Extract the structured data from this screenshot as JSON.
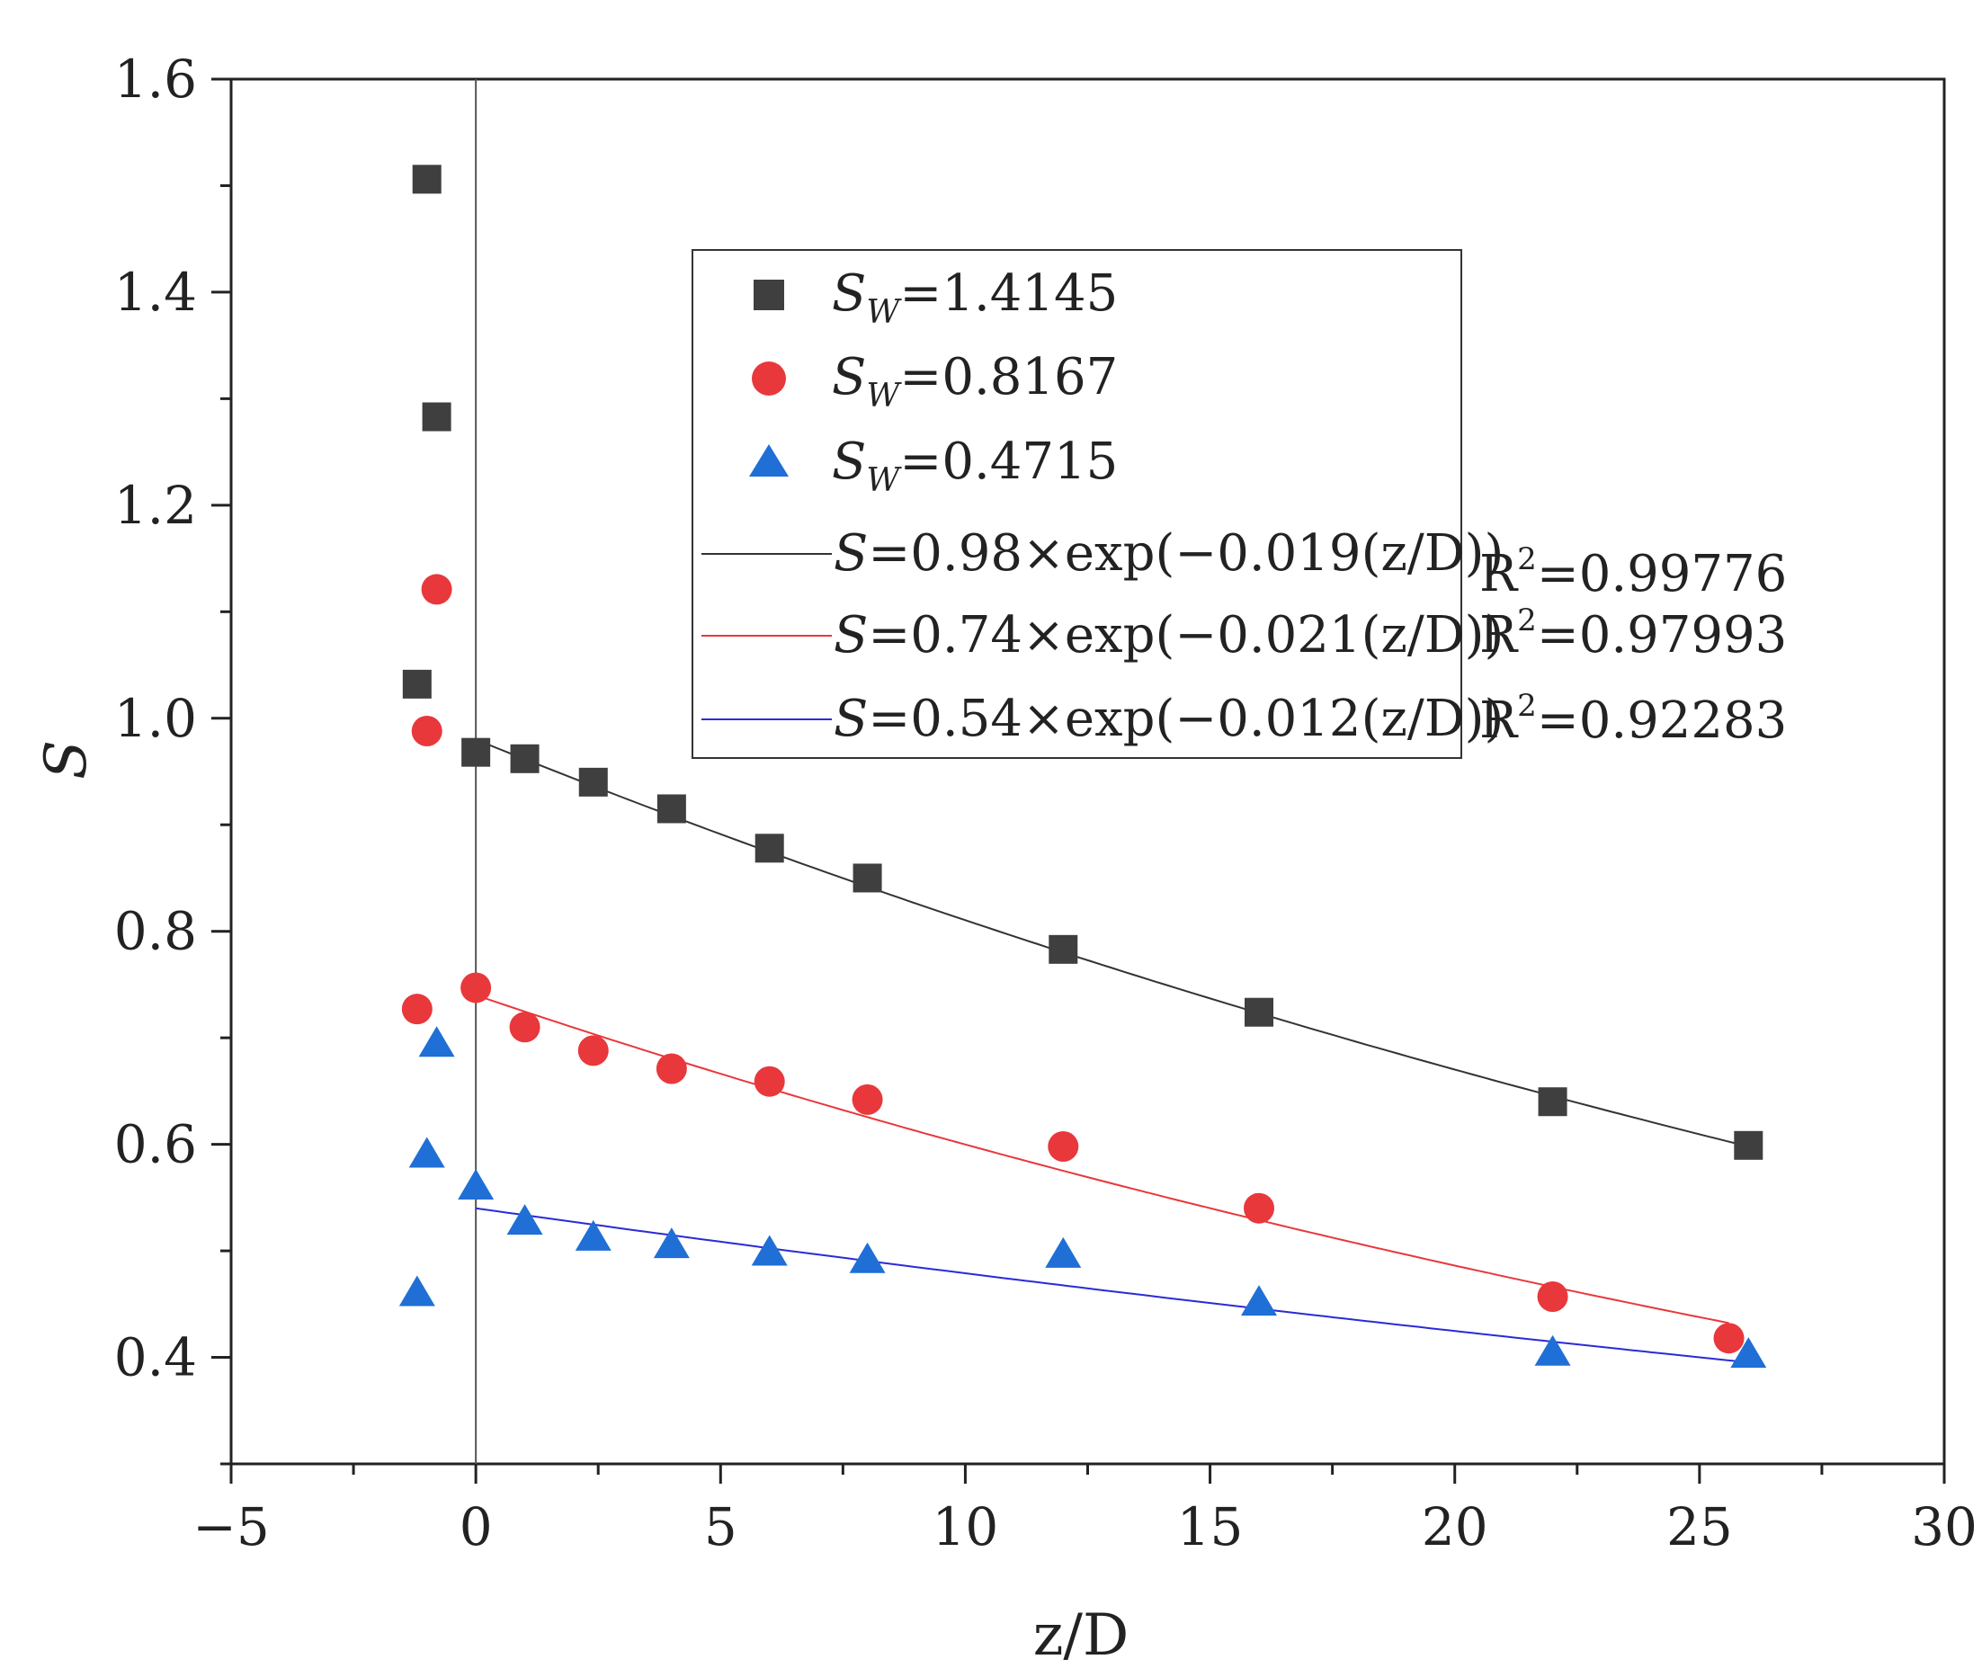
{
  "chart_data": {
    "type": "scatter",
    "title": "",
    "xlabel": "z/D",
    "ylabel": "S",
    "xlim": [
      -5,
      30
    ],
    "ylim": [
      0.3,
      1.6
    ],
    "xticks": [
      -5,
      0,
      5,
      10,
      15,
      20,
      25,
      30
    ],
    "xtick_labels": [
      "−5",
      "0",
      "5",
      "10",
      "15",
      "20",
      "25",
      "30"
    ],
    "yticks": [
      0.4,
      0.6,
      0.8,
      1.0,
      1.2,
      1.4,
      1.6
    ],
    "ytick_labels": [
      "0.4",
      "0.6",
      "0.8",
      "1.0",
      "1.2",
      "1.4",
      "1.6"
    ],
    "vline_x": 0,
    "legend_position": "upper-center",
    "series": [
      {
        "name": "Sw=1.4145",
        "label_italic": "S",
        "label_sub": "W",
        "label_value": "=1.4145",
        "marker": "square",
        "color": "#3f3f3f",
        "x": [
          -1.0,
          -0.8,
          -1.2,
          0,
          1,
          2.4,
          4,
          6,
          8,
          12,
          16,
          22,
          26
        ],
        "y": [
          1.506,
          1.283,
          1.032,
          0.968,
          0.962,
          0.94,
          0.915,
          0.878,
          0.85,
          0.783,
          0.724,
          0.64,
          0.599
        ]
      },
      {
        "name": "Sw=0.8167",
        "label_italic": "S",
        "label_sub": "W",
        "label_value": "=0.8167",
        "marker": "circle",
        "color": "#e8383b",
        "x": [
          -0.8,
          -1.0,
          -1.2,
          0,
          1,
          2.4,
          4,
          6,
          8,
          12,
          16,
          22,
          25.6
        ],
        "y": [
          1.121,
          0.988,
          0.727,
          0.747,
          0.71,
          0.688,
          0.671,
          0.659,
          0.642,
          0.598,
          0.54,
          0.457,
          0.418
        ]
      },
      {
        "name": "Sw=0.4715",
        "label_italic": "S",
        "label_sub": "W",
        "label_value": "=0.4715",
        "marker": "triangle",
        "color": "#1f6fd6",
        "x": [
          -0.8,
          -1.0,
          -1.2,
          0,
          1,
          2.4,
          4,
          6,
          8,
          12,
          16,
          22,
          26
        ],
        "y": [
          0.694,
          0.59,
          0.46,
          0.56,
          0.527,
          0.512,
          0.505,
          0.498,
          0.491,
          0.496,
          0.451,
          0.404,
          0.402
        ]
      }
    ],
    "fits": [
      {
        "label_s": "S",
        "label_eq": "=0.98×exp(−0.019(z/D))",
        "r2_prefix": "R",
        "r2_sup": "2",
        "r2_value": "=0.99776",
        "a": 0.98,
        "b": 0.019,
        "x_range": [
          0,
          26
        ],
        "color": "#333333"
      },
      {
        "label_s": "S",
        "label_eq": "=0.74×exp(−0.021(z/D))",
        "r2_prefix": "R",
        "r2_sup": "2",
        "r2_value": "=0.97993",
        "a": 0.74,
        "b": 0.021,
        "x_range": [
          0,
          25.6
        ],
        "color": "#e8383b"
      },
      {
        "label_s": "S",
        "label_eq": "=0.54×exp(−0.012(z/D))",
        "r2_prefix": "R",
        "r2_sup": "2",
        "r2_value": "=0.92283",
        "a": 0.54,
        "b": 0.012,
        "x_range": [
          0,
          26
        ],
        "color": "#2b2bd6"
      }
    ]
  }
}
